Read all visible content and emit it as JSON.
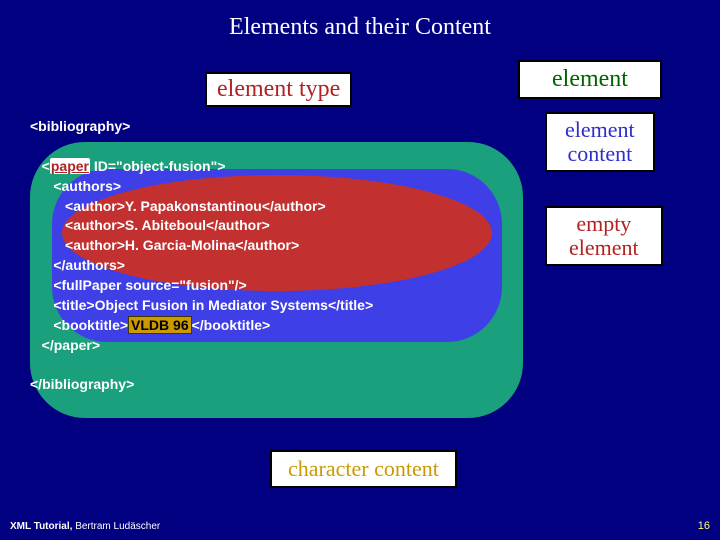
{
  "title": "Elements and their Content",
  "labels": {
    "element_type": "element type",
    "element": "element",
    "element_content_l1": "element",
    "element_content_l2": "content",
    "empty_element_l1": "empty",
    "empty_element_l2": "element",
    "character_content": "character content"
  },
  "code": {
    "bibliography_open": "<bibliography>",
    "paper_open_1": "<",
    "paper_tagname": "paper",
    "paper_open_2": " ID=\"object-fusion\">",
    "authors_open": "<authors>",
    "author1": "<author>Y. Papakonstantinou</author>",
    "author2": "<author>S. Abiteboul</author>",
    "author3": "<author>H. Garcia-Molina</author>",
    "authors_close": "</authors>",
    "fullpaper": "<fullPaper source=\"fusion\"/>",
    "title_open": "<title>",
    "title_text": "Object Fusion in Mediator Systems",
    "title_close": "</title>",
    "booktitle_open": "<booktitle>",
    "booktitle_text": "VLDB 96",
    "booktitle_close": "</booktitle>",
    "paper_close": "</paper>",
    "bibliography_close": "</bibliography>"
  },
  "footer": {
    "left_bold": "XML Tutorial,",
    "left_rest": " Bertram Ludäscher",
    "page_number": "16"
  },
  "colors": {
    "background": "#000080",
    "green_box": "#1aa07d",
    "blue_box": "#3f3fe8",
    "red_ellipse": "#c23030",
    "label_element_type": "#b22222",
    "label_element": "#006400",
    "label_element_content": "#2e2ecc",
    "label_empty_element": "#b22222",
    "label_char_content": "#cc9900",
    "highlight_char_content_bg": "#cc9900"
  }
}
